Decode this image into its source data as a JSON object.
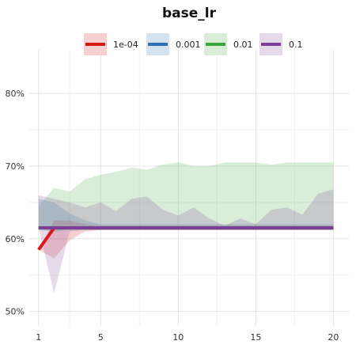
{
  "chart_data": {
    "type": "line",
    "title": "base_lr",
    "xlabel": "",
    "ylabel": "",
    "x": [
      1,
      2,
      3,
      4,
      5,
      6,
      7,
      8,
      9,
      10,
      11,
      12,
      13,
      14,
      15,
      16,
      17,
      18,
      19,
      20
    ],
    "xlim": [
      0.4,
      21
    ],
    "ylim": [
      0.48,
      0.86
    ],
    "x_ticks": [
      1,
      5,
      10,
      15,
      20
    ],
    "x_tick_labels": [
      "1",
      "5",
      "10",
      "15",
      "20"
    ],
    "y_ticks": [
      0.5,
      0.6,
      0.7,
      0.8
    ],
    "y_tick_labels": [
      "50%",
      "60%",
      "70%",
      "80%"
    ],
    "grid": true,
    "legend_position": "top",
    "series": [
      {
        "name": "1e-04",
        "color": "#d7191c",
        "values": [
          0.585,
          0.615,
          0.615,
          0.615,
          0.615,
          0.615,
          0.615,
          0.615,
          0.615,
          0.615,
          0.615,
          0.615,
          0.615,
          0.615,
          0.615,
          0.615,
          0.615,
          0.615,
          0.615,
          0.615
        ],
        "band_low": [
          0.585,
          0.573,
          0.598,
          0.61,
          0.612,
          0.612,
          0.612,
          0.612,
          0.612,
          0.612,
          0.612,
          0.612,
          0.612,
          0.612,
          0.612,
          0.612,
          0.612,
          0.612,
          0.612,
          0.612
        ],
        "band_high": [
          0.585,
          0.625,
          0.625,
          0.62,
          0.618,
          0.618,
          0.618,
          0.618,
          0.618,
          0.618,
          0.618,
          0.618,
          0.618,
          0.618,
          0.618,
          0.618,
          0.618,
          0.618,
          0.618,
          0.618
        ]
      },
      {
        "name": "0.001",
        "color": "#2c6fb3",
        "values": [
          0.615,
          0.615,
          0.615,
          0.615,
          0.615,
          0.615,
          0.615,
          0.615,
          0.615,
          0.615,
          0.615,
          0.615,
          0.615,
          0.615,
          0.615,
          0.615,
          0.615,
          0.615,
          0.615,
          0.615
        ],
        "band_low": [
          0.612,
          0.61,
          0.612,
          0.612,
          0.612,
          0.612,
          0.612,
          0.612,
          0.612,
          0.612,
          0.612,
          0.612,
          0.612,
          0.612,
          0.612,
          0.612,
          0.612,
          0.612,
          0.612,
          0.612
        ],
        "band_high": [
          0.655,
          0.65,
          0.635,
          0.625,
          0.62,
          0.62,
          0.62,
          0.62,
          0.62,
          0.62,
          0.62,
          0.62,
          0.62,
          0.62,
          0.62,
          0.62,
          0.62,
          0.62,
          0.62,
          0.62
        ]
      },
      {
        "name": "0.01",
        "color": "#3fa63f",
        "values": [
          0.615,
          0.615,
          0.615,
          0.615,
          0.615,
          0.615,
          0.615,
          0.615,
          0.615,
          0.615,
          0.615,
          0.615,
          0.615,
          0.615,
          0.615,
          0.615,
          0.615,
          0.615,
          0.615,
          0.615
        ],
        "band_low": [
          0.612,
          0.612,
          0.612,
          0.612,
          0.612,
          0.612,
          0.612,
          0.612,
          0.612,
          0.612,
          0.612,
          0.612,
          0.612,
          0.612,
          0.612,
          0.612,
          0.612,
          0.612,
          0.612,
          0.612
        ],
        "band_high": [
          0.645,
          0.67,
          0.665,
          0.682,
          0.688,
          0.692,
          0.698,
          0.695,
          0.702,
          0.705,
          0.7,
          0.7,
          0.705,
          0.705,
          0.705,
          0.702,
          0.705,
          0.705,
          0.705,
          0.705
        ]
      },
      {
        "name": "0.1",
        "color": "#7b3f98",
        "values": [
          0.615,
          0.615,
          0.615,
          0.615,
          0.615,
          0.615,
          0.615,
          0.615,
          0.615,
          0.615,
          0.615,
          0.615,
          0.615,
          0.615,
          0.615,
          0.615,
          0.615,
          0.615,
          0.615,
          0.615
        ],
        "band_low": [
          0.615,
          0.525,
          0.61,
          0.612,
          0.612,
          0.612,
          0.612,
          0.612,
          0.612,
          0.612,
          0.612,
          0.612,
          0.612,
          0.612,
          0.612,
          0.612,
          0.612,
          0.612,
          0.612,
          0.612
        ],
        "band_high": [
          0.66,
          0.655,
          0.65,
          0.643,
          0.65,
          0.638,
          0.655,
          0.658,
          0.64,
          0.632,
          0.643,
          0.628,
          0.618,
          0.628,
          0.62,
          0.64,
          0.643,
          0.633,
          0.662,
          0.668
        ]
      }
    ]
  }
}
